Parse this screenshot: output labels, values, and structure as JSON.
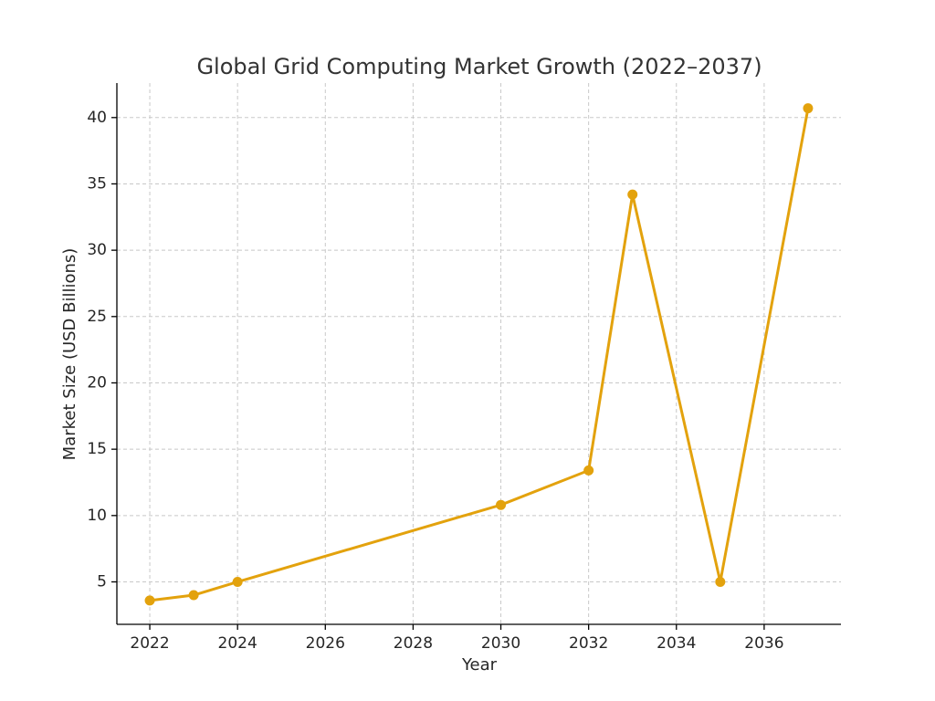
{
  "chart_data": {
    "type": "line",
    "title": "Global Grid Computing Market Growth (2022–2037)",
    "xlabel": "Year",
    "ylabel": "Market Size (USD Billions)",
    "x": [
      2022,
      2023,
      2024,
      2030,
      2032,
      2033,
      2035,
      2037
    ],
    "series": [
      {
        "values": [
          3.6,
          4.0,
          5.0,
          10.8,
          13.4,
          34.2,
          5.0,
          40.7
        ],
        "color": "#E3A20D",
        "marker": "circle"
      }
    ],
    "xlim": [
      2021.25,
      2037.75
    ],
    "ylim": [
      1.8,
      42.6
    ],
    "xticks": [
      2022,
      2024,
      2026,
      2028,
      2030,
      2032,
      2034,
      2036
    ],
    "yticks": [
      5,
      10,
      15,
      20,
      25,
      30,
      35,
      40
    ],
    "grid": true,
    "grid_style": "dashed",
    "legend": false
  }
}
